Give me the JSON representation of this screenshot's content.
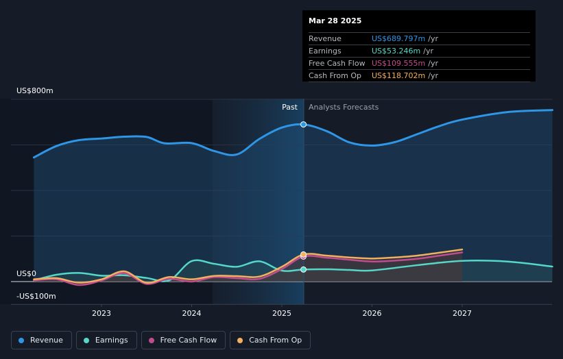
{
  "chart_data": {
    "type": "line",
    "y_axis": {
      "max_label": "US$800m",
      "zero_label": "US$0",
      "min_label": "-US$100m",
      "ylim": [
        -100,
        800
      ]
    },
    "x_axis": {
      "ticks": [
        "2023",
        "2024",
        "2025",
        "2026",
        "2027"
      ]
    },
    "past_label": "Past",
    "forecast_label": "Analysts Forecasts",
    "series": [
      {
        "name": "Revenue",
        "color": "#2f95e5",
        "points": [
          [
            2022.25,
            545
          ],
          [
            2022.5,
            595
          ],
          [
            2022.75,
            621
          ],
          [
            2023.0,
            628
          ],
          [
            2023.25,
            636
          ],
          [
            2023.5,
            635
          ],
          [
            2023.7,
            607
          ],
          [
            2024.0,
            608
          ],
          [
            2024.25,
            573
          ],
          [
            2024.5,
            558
          ],
          [
            2024.75,
            626
          ],
          [
            2025.0,
            676
          ],
          [
            2025.24,
            690
          ],
          [
            2025.5,
            660
          ],
          [
            2025.75,
            611
          ],
          [
            2026.0,
            597
          ],
          [
            2026.25,
            612
          ],
          [
            2026.5,
            647
          ],
          [
            2026.75,
            683
          ],
          [
            2027.0,
            711
          ],
          [
            2027.5,
            744
          ],
          [
            2028.0,
            753
          ]
        ]
      },
      {
        "name": "Earnings",
        "color": "#56d8c8",
        "points": [
          [
            2022.25,
            5
          ],
          [
            2022.5,
            30
          ],
          [
            2022.75,
            38
          ],
          [
            2023.0,
            26
          ],
          [
            2023.25,
            28
          ],
          [
            2023.5,
            16
          ],
          [
            2023.75,
            5
          ],
          [
            2024.0,
            90
          ],
          [
            2024.25,
            78
          ],
          [
            2024.5,
            65
          ],
          [
            2024.75,
            89
          ],
          [
            2025.0,
            48
          ],
          [
            2025.24,
            53
          ],
          [
            2025.5,
            54
          ],
          [
            2025.75,
            51
          ],
          [
            2026.0,
            49
          ],
          [
            2026.5,
            72
          ],
          [
            2027.0,
            91
          ],
          [
            2027.5,
            88
          ],
          [
            2028.0,
            66
          ]
        ]
      },
      {
        "name": "Free Cash Flow",
        "color": "#c24d8e",
        "points": [
          [
            2022.25,
            5
          ],
          [
            2022.5,
            10
          ],
          [
            2022.75,
            -15
          ],
          [
            2023.0,
            5
          ],
          [
            2023.25,
            37
          ],
          [
            2023.5,
            -10
          ],
          [
            2023.75,
            12
          ],
          [
            2024.0,
            0
          ],
          [
            2024.25,
            20
          ],
          [
            2024.5,
            15
          ],
          [
            2024.75,
            12
          ],
          [
            2025.0,
            55
          ],
          [
            2025.24,
            110
          ],
          [
            2025.5,
            105
          ],
          [
            2025.75,
            96
          ],
          [
            2026.0,
            88
          ],
          [
            2026.25,
            92
          ],
          [
            2026.5,
            100
          ],
          [
            2026.75,
            114
          ],
          [
            2027.0,
            128
          ]
        ]
      },
      {
        "name": "Cash From Op",
        "color": "#f3b15f",
        "points": [
          [
            2022.25,
            10
          ],
          [
            2022.5,
            15
          ],
          [
            2022.75,
            -5
          ],
          [
            2023.0,
            10
          ],
          [
            2023.25,
            45
          ],
          [
            2023.5,
            -5
          ],
          [
            2023.75,
            20
          ],
          [
            2024.0,
            10
          ],
          [
            2024.25,
            25
          ],
          [
            2024.5,
            24
          ],
          [
            2024.75,
            22
          ],
          [
            2025.0,
            65
          ],
          [
            2025.24,
            119
          ],
          [
            2025.5,
            114
          ],
          [
            2025.75,
            106
          ],
          [
            2026.0,
            101
          ],
          [
            2026.25,
            106
          ],
          [
            2026.5,
            114
          ],
          [
            2026.75,
            127
          ],
          [
            2027.0,
            141
          ]
        ]
      }
    ],
    "highlight_x": 2025.24
  },
  "tooltip": {
    "date": "Mar 28 2025",
    "unit": "/yr",
    "rows": [
      {
        "label": "Revenue",
        "value": "US$689.797m",
        "color": "#2f95e5"
      },
      {
        "label": "Earnings",
        "value": "US$53.246m",
        "color": "#56d8c8"
      },
      {
        "label": "Free Cash Flow",
        "value": "US$109.555m",
        "color": "#c24d8e"
      },
      {
        "label": "Cash From Op",
        "value": "US$118.702m",
        "color": "#f3b15f"
      }
    ]
  },
  "legend": [
    {
      "label": "Revenue",
      "color": "#2f95e5"
    },
    {
      "label": "Earnings",
      "color": "#56d8c8"
    },
    {
      "label": "Free Cash Flow",
      "color": "#c24d8e"
    },
    {
      "label": "Cash From Op",
      "color": "#f3b15f"
    }
  ]
}
